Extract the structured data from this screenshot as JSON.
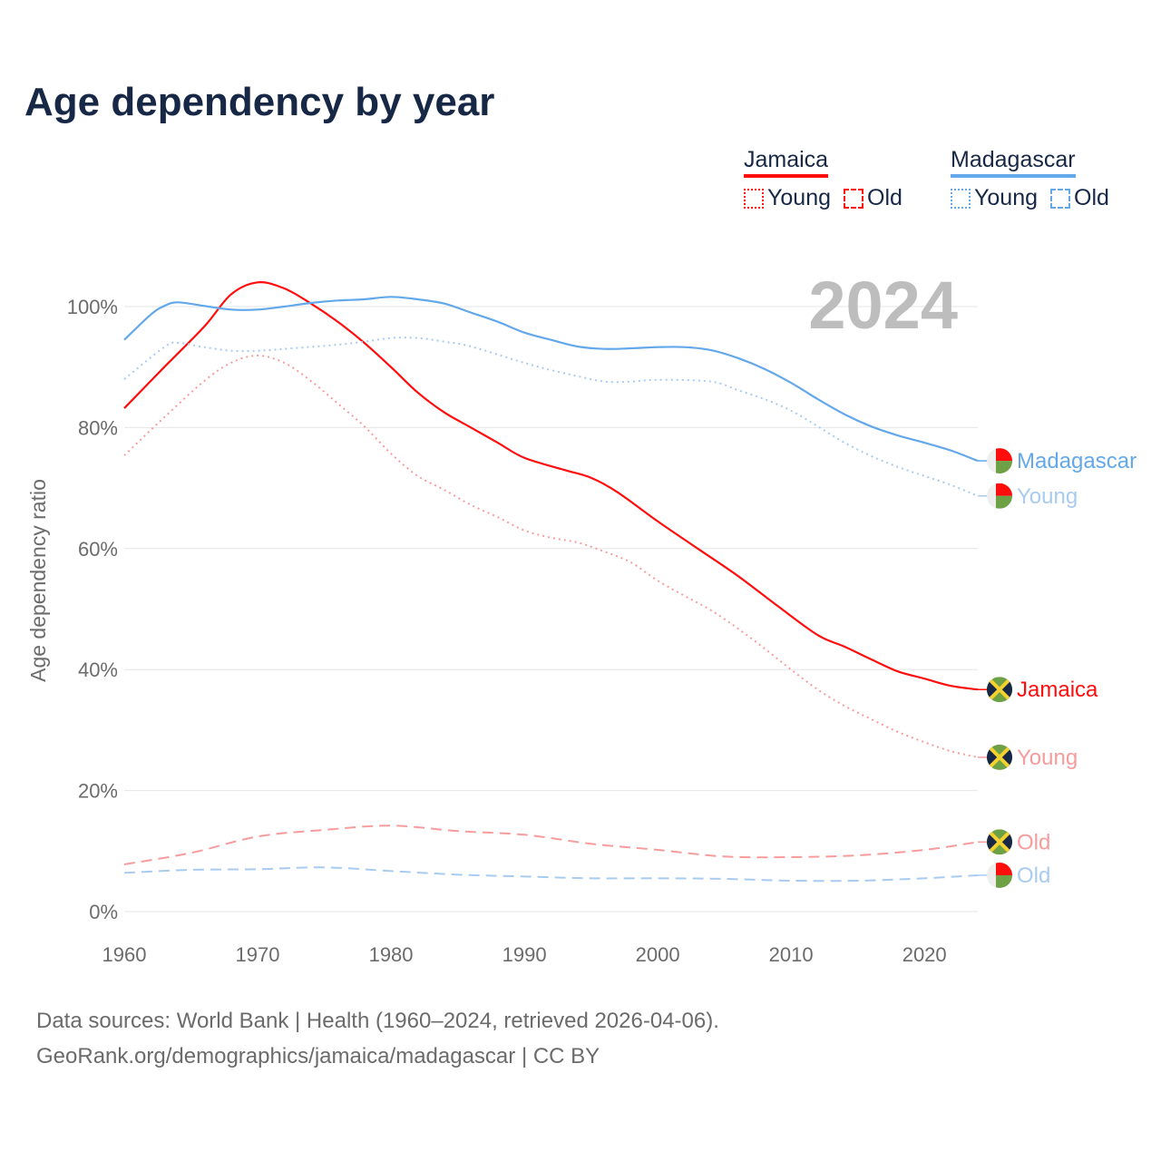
{
  "title": "Age dependency by year",
  "legend": {
    "groups": [
      {
        "name": "Jamaica",
        "color": "#ff0d0d",
        "items": [
          "Young",
          "Old"
        ]
      },
      {
        "name": "Madagascar",
        "color": "#62a8ea",
        "items": [
          "Young",
          "Old"
        ]
      }
    ]
  },
  "footer": {
    "line1": "Data sources: World Bank | Health (1960–2024, retrieved 2026-04-06).",
    "line2": "GeoRank.org/demographics/jamaica/madagascar | CC BY"
  },
  "chart_data": {
    "type": "line",
    "title": "Age dependency by year",
    "xlabel": "",
    "ylabel": "Age dependency ratio",
    "xlim": [
      1960,
      2024
    ],
    "ylim": [
      0,
      110
    ],
    "xticks": [
      "1960",
      "1970",
      "1980",
      "1990",
      "2000",
      "2010",
      "2020"
    ],
    "yticks": [
      "0%",
      "20%",
      "40%",
      "60%",
      "80%",
      "100%"
    ],
    "watermark_year": "2024",
    "grid": true,
    "legend_position": "top-right",
    "series": [
      {
        "name": "Jamaica",
        "label": "Jamaica",
        "country": "jamaica",
        "style": "solid",
        "color": "#ff0d0d",
        "x": [
          1960,
          1963,
          1966,
          1968,
          1970,
          1972,
          1974,
          1976,
          1978,
          1980,
          1982,
          1984,
          1986,
          1988,
          1990,
          1993,
          1995,
          1997,
          2000,
          2003,
          2006,
          2009,
          2012,
          2014,
          2016,
          2018,
          2020,
          2022,
          2024
        ],
        "y": [
          83.2,
          90,
          96.7,
          102,
          104,
          103,
          100.5,
          97.5,
          94,
          90,
          85.8,
          82.5,
          80,
          77.5,
          75,
          73,
          71.7,
          69.3,
          64.5,
          60,
          55.5,
          50.5,
          45.7,
          43.8,
          41.7,
          39.7,
          38.5,
          37.3,
          36.7
        ]
      },
      {
        "name": "Jamaica Young",
        "label": "Young",
        "country": "jamaica",
        "style": "dotted",
        "color": "#f79c9c",
        "x": [
          1960,
          1963,
          1966,
          1968,
          1970,
          1972,
          1974,
          1976,
          1978,
          1980,
          1982,
          1984,
          1986,
          1988,
          1990,
          1992,
          1994,
          1996,
          1998,
          2000,
          2002,
          2004,
          2006,
          2008,
          2010,
          2012,
          2014,
          2016,
          2018,
          2020,
          2022,
          2024
        ],
        "y": [
          75.4,
          81.7,
          87.7,
          90.7,
          91.9,
          90.7,
          87.7,
          84,
          80.2,
          75.7,
          72,
          69.7,
          67.2,
          65.2,
          63,
          61.8,
          61,
          59.5,
          57.7,
          54.7,
          52.2,
          49.8,
          46.8,
          43.5,
          40,
          36.7,
          34,
          31.8,
          29.7,
          28,
          26.5,
          25.5
        ]
      },
      {
        "name": "Jamaica Old",
        "label": "Old",
        "country": "jamaica",
        "style": "dashed",
        "color": "#f79c9c",
        "x": [
          1960,
          1965,
          1970,
          1975,
          1980,
          1985,
          1990,
          1995,
          2000,
          2005,
          2010,
          2015,
          2020,
          2024
        ],
        "y": [
          7.8,
          9.7,
          12.4,
          13.5,
          14.2,
          13.3,
          12.7,
          11.2,
          10.2,
          9.1,
          9,
          9.3,
          10.2,
          11.5
        ]
      },
      {
        "name": "Madagascar",
        "label": "Madagascar",
        "country": "madagascar",
        "style": "solid",
        "color": "#62a8ea",
        "x": [
          1960,
          1962,
          1963,
          1964,
          1966,
          1968,
          1970,
          1972,
          1974,
          1976,
          1978,
          1980,
          1982,
          1984,
          1986,
          1988,
          1990,
          1992,
          1994,
          1996,
          1998,
          2000,
          2002,
          2004,
          2006,
          2008,
          2010,
          2012,
          2014,
          2016,
          2018,
          2020,
          2022,
          2024
        ],
        "y": [
          94.5,
          98.7,
          100.1,
          100.7,
          100.1,
          99.5,
          99.5,
          100,
          100.6,
          101,
          101.2,
          101.6,
          101.2,
          100.5,
          99,
          97.5,
          95.7,
          94.5,
          93.4,
          93,
          93.1,
          93.3,
          93.3,
          92.8,
          91.5,
          89.7,
          87.4,
          84.7,
          82.2,
          80.2,
          78.7,
          77.5,
          76.2,
          74.5
        ]
      },
      {
        "name": "Madagascar Young",
        "label": "Young",
        "country": "madagascar",
        "style": "dotted",
        "color": "#a8cbf0",
        "x": [
          1960,
          1963,
          1964,
          1966,
          1968,
          1970,
          1972,
          1976,
          1978,
          1980,
          1982,
          1984,
          1986,
          1990,
          1992,
          1994,
          1996,
          1998,
          2000,
          2004,
          2006,
          2008,
          2010,
          2012,
          2014,
          2016,
          2018,
          2020,
          2022,
          2024
        ],
        "y": [
          88,
          93.3,
          94,
          93.3,
          92.7,
          92.7,
          93,
          93.7,
          94.2,
          94.8,
          94.8,
          94.2,
          93.4,
          90.7,
          89.5,
          88.5,
          87.6,
          87.6,
          87.9,
          87.6,
          86.2,
          84.7,
          82.8,
          80.2,
          77.5,
          75.3,
          73.5,
          72,
          70.5,
          68.7
        ]
      },
      {
        "name": "Madagascar Old",
        "label": "Old",
        "country": "madagascar",
        "style": "dashed",
        "color": "#a8cbf0",
        "x": [
          1960,
          1965,
          1970,
          1975,
          1980,
          1985,
          1990,
          1995,
          2000,
          2005,
          2010,
          2015,
          2020,
          2024
        ],
        "y": [
          6.4,
          6.9,
          7.0,
          7.3,
          6.7,
          6.1,
          5.8,
          5.5,
          5.5,
          5.4,
          5.1,
          5.1,
          5.5,
          6.0
        ]
      }
    ]
  }
}
